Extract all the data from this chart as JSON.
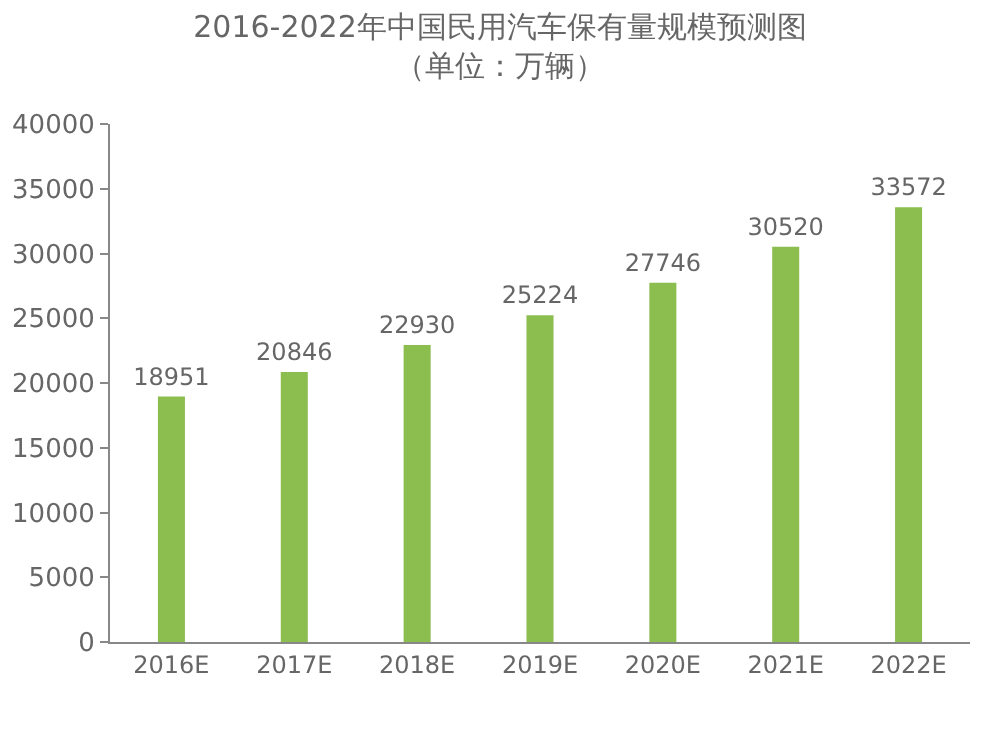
{
  "chart_data": {
    "type": "bar",
    "title": "2016-2022年中国民用汽车保有量规模预测图",
    "subtitle": "（单位：万辆）",
    "categories": [
      "2016E",
      "2017E",
      "2018E",
      "2019E",
      "2020E",
      "2021E",
      "2022E"
    ],
    "values": [
      18951,
      20846,
      22930,
      25224,
      27746,
      30520,
      33572
    ],
    "color": "#8bbd4f",
    "ylim": [
      0,
      40000
    ],
    "yticks": [
      0,
      5000,
      10000,
      15000,
      20000,
      25000,
      30000,
      35000,
      40000
    ],
    "data_labels": true
  }
}
